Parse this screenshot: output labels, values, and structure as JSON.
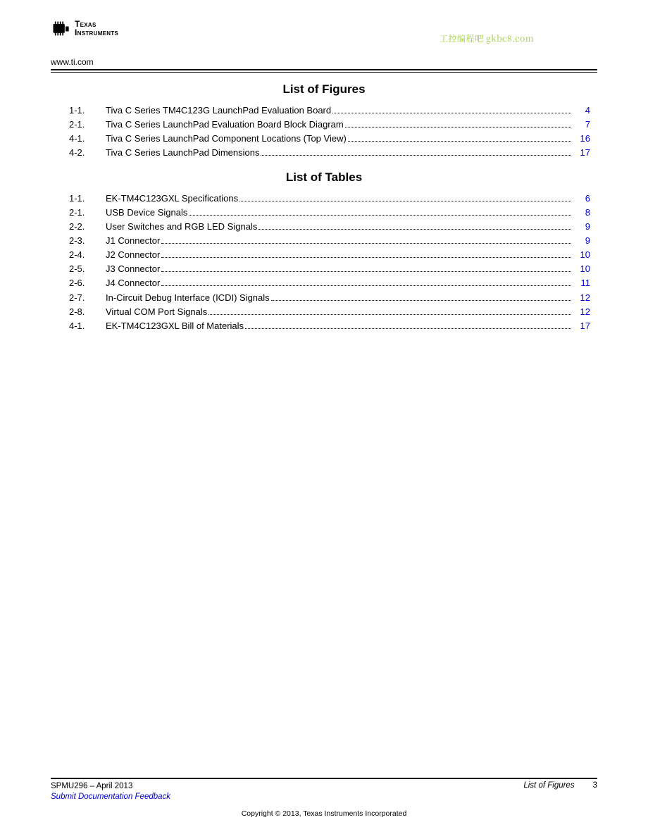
{
  "header": {
    "logo_line1": "Texas",
    "logo_line2": "Instruments",
    "watermark": "工控编程吧 gkbc8.com",
    "url": "www.ti.com"
  },
  "figures": {
    "title": "List of Figures",
    "items": [
      {
        "num": "1-1.",
        "title": "Tiva C Series TM4C123G LaunchPad Evaluation Board",
        "page": "4"
      },
      {
        "num": "2-1.",
        "title": "Tiva C Series LaunchPad Evaluation Board Block Diagram",
        "page": "7"
      },
      {
        "num": "4-1.",
        "title": "Tiva C Series LaunchPad Component Locations (Top View)",
        "page": "16"
      },
      {
        "num": "4-2.",
        "title": "Tiva C Series LaunchPad Dimensions",
        "page": "17"
      }
    ]
  },
  "tables": {
    "title": "List of Tables",
    "items": [
      {
        "num": "1-1.",
        "title": "EK-TM4C123GXL Specifications",
        "page": "6"
      },
      {
        "num": "2-1.",
        "title": "USB Device Signals",
        "page": "8"
      },
      {
        "num": "2-2.",
        "title": "User Switches and RGB LED Signals",
        "page": "9"
      },
      {
        "num": "2-3.",
        "title": "J1 Connector",
        "page": "9"
      },
      {
        "num": "2-4.",
        "title": "J2 Connector",
        "page": "10"
      },
      {
        "num": "2-5.",
        "title": "J3 Connector",
        "page": "10"
      },
      {
        "num": "2-6.",
        "title": "J4 Connector",
        "page": "11"
      },
      {
        "num": "2-7.",
        "title": "In-Circuit Debug Interface (ICDI) Signals",
        "page": "12"
      },
      {
        "num": "2-8.",
        "title": "Virtual COM Port Signals",
        "page": "12"
      },
      {
        "num": "4-1.",
        "title": "EK-TM4C123GXL Bill of Materials",
        "page": "17"
      }
    ]
  },
  "footer": {
    "doc_id": "SPMU296 – April 2013",
    "feedback": "Submit Documentation Feedback",
    "section_name": "List of Figures",
    "page_number": "3",
    "copyright": "Copyright © 2013, Texas Instruments Incorporated"
  },
  "colors": {
    "link_blue": "#0000cc",
    "watermark_green": "#9acd32",
    "text": "#000000",
    "background": "#ffffff"
  },
  "typography": {
    "body_font": "Arial, Helvetica, sans-serif",
    "body_size_pt": 10,
    "section_title_size_pt": 13,
    "section_title_weight": "bold",
    "footer_size_pt": 8.5
  }
}
